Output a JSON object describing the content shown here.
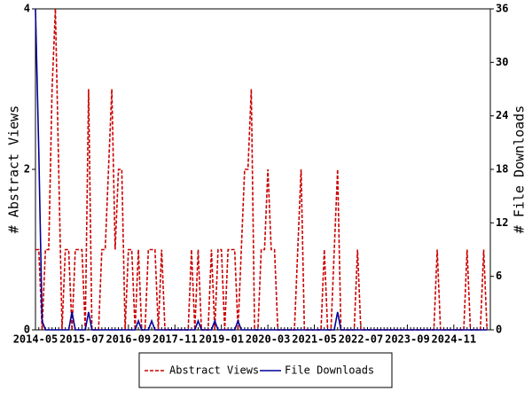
{
  "chart_data": {
    "type": "line",
    "categories": [
      "2014-05",
      null,
      null,
      null,
      null,
      null,
      null,
      null,
      null,
      null,
      null,
      null,
      null,
      null,
      "2015-07",
      null,
      null,
      null,
      null,
      null,
      null,
      null,
      null,
      null,
      null,
      null,
      null,
      null,
      "2016-09",
      null,
      null,
      null,
      null,
      null,
      null,
      null,
      null,
      null,
      null,
      null,
      null,
      null,
      "2017-11",
      null,
      null,
      null,
      null,
      null,
      null,
      null,
      null,
      null,
      null,
      null,
      null,
      null,
      "2019-01",
      null,
      null,
      null,
      null,
      null,
      null,
      null,
      null,
      null,
      null,
      null,
      null,
      null,
      "2020-03",
      null,
      null,
      null,
      null,
      null,
      null,
      null,
      null,
      null,
      null,
      null,
      null,
      null,
      "2021-05",
      null,
      null,
      null,
      null,
      null,
      null,
      null,
      null,
      null,
      null,
      null,
      null,
      null,
      "2022-07",
      null,
      null,
      null,
      null,
      null,
      null,
      null,
      null,
      null,
      null,
      null,
      null,
      null,
      "2023-09",
      null,
      null,
      null,
      null,
      null,
      null,
      null,
      null,
      null,
      null,
      null,
      null,
      null,
      "2024-11",
      null,
      null,
      null,
      null,
      null,
      null,
      null,
      null,
      null,
      null
    ],
    "y_label": "# Abstract Views",
    "y2_label": "# File Downloads",
    "ylim": [
      0,
      4
    ],
    "yticks": [
      0,
      2,
      4
    ],
    "y2lim": [
      0,
      36
    ],
    "y2ticks": [
      0,
      6,
      12,
      18,
      24,
      30,
      36
    ],
    "series": [
      {
        "name": "Abstract Views",
        "color": "#cc0000",
        "dashed": true,
        "values": [
          1,
          1,
          0,
          1,
          1,
          3,
          4,
          2,
          0,
          1,
          1,
          0,
          1,
          1,
          1,
          0,
          3,
          0,
          0,
          0,
          1,
          1,
          2,
          3,
          1,
          2,
          2,
          0,
          1,
          1,
          0,
          1,
          0,
          0,
          1,
          1,
          1,
          0,
          1,
          0,
          0,
          0,
          0,
          0,
          0,
          0,
          0,
          1,
          0,
          1,
          0,
          0,
          0,
          1,
          0,
          1,
          1,
          0,
          1,
          1,
          1,
          0,
          1,
          2,
          2,
          3,
          0,
          0,
          1,
          1,
          2,
          1,
          1,
          0,
          0,
          0,
          0,
          0,
          0,
          1,
          2,
          0,
          0,
          0,
          0,
          0,
          0,
          1,
          0,
          0,
          1,
          2,
          0,
          0,
          0,
          0,
          0,
          1,
          0,
          0,
          0,
          0,
          0,
          0,
          0,
          0,
          0,
          0,
          0,
          0,
          0,
          0,
          0,
          0,
          0,
          0,
          0,
          0,
          0,
          0,
          0,
          1,
          0,
          0,
          0,
          0,
          0,
          0,
          0,
          0,
          1,
          0,
          0,
          0,
          0,
          1,
          0
        ]
      },
      {
        "name": "File Downloads",
        "color": "#000099",
        "axis": "y2",
        "values": [
          36,
          20,
          1,
          0,
          0,
          0,
          0,
          0,
          0,
          0,
          0,
          2,
          0,
          0,
          0,
          0,
          2,
          0,
          0,
          0,
          0,
          0,
          0,
          0,
          0,
          0,
          0,
          0,
          0,
          0,
          0,
          1,
          0,
          0,
          0,
          1,
          0,
          0,
          0,
          0,
          0,
          0,
          0,
          0,
          0,
          0,
          0,
          0,
          0,
          1,
          0,
          0,
          0,
          0,
          1,
          0,
          0,
          0,
          0,
          0,
          0,
          1,
          0,
          0,
          0,
          0,
          0,
          0,
          0,
          0,
          0,
          0,
          0,
          0,
          0,
          0,
          0,
          0,
          0,
          0,
          0,
          0,
          0,
          0,
          0,
          0,
          0,
          0,
          0,
          0,
          0,
          2,
          0,
          0,
          0,
          0,
          0,
          0,
          0,
          0,
          0,
          0,
          0,
          0,
          0,
          0,
          0,
          0,
          0,
          0,
          0,
          0,
          0,
          0,
          0,
          0,
          0,
          0,
          0,
          0,
          0,
          0,
          0,
          0,
          0,
          0,
          0,
          0,
          0,
          0,
          0,
          0,
          0,
          0,
          0,
          0,
          0
        ]
      }
    ]
  }
}
